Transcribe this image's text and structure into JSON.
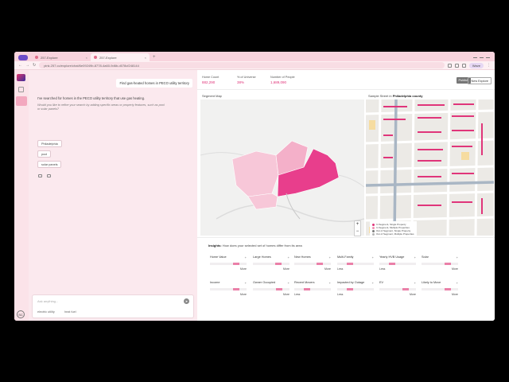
{
  "browser": {
    "tabs": [
      {
        "label": "257-Explore",
        "active": false
      },
      {
        "label": "257-Explore",
        "active": true
      }
    ],
    "url": "pink.257.co/explore/chat/6e09249b-8778-4a60-9d6b-d078cf248144",
    "profile_label": "Wave"
  },
  "chat": {
    "user_query": "Find gas-heated homes in PECO utility territory",
    "response": "I've searched for homes in the PECO utility territory that use gas heating.",
    "followup": "Would you like to refine your search by adding specific areas or property features, such as pool or solar panels?",
    "suggestions": [
      "Philadelphia",
      "pool",
      "solar panels"
    ],
    "input_placeholder": "Ask anything...",
    "selectors": [
      "electric utility",
      "heat fuel"
    ]
  },
  "stats": [
    {
      "label": "Home Count",
      "value": "882,290"
    },
    {
      "label": "% of Universe",
      "value": "38%"
    },
    {
      "label": "Number of People",
      "value": "1,689,090"
    }
  ],
  "actions": {
    "publish": "Publish",
    "new_explore": "New Explore"
  },
  "segment_map": {
    "label": "Segment Map"
  },
  "sample_map": {
    "label_prefix": "Sample Street in",
    "county": "Philadelphia county",
    "legend": [
      {
        "label": "In Segment, Single Property",
        "color": "#e0357a"
      },
      {
        "label": "In Segment, Multiple Properties",
        "color": "#f08fb3"
      },
      {
        "label": "Out of Segment, Single Property",
        "color": "#7a7a7a"
      },
      {
        "label": "Out of Segment, Multiple Properties",
        "color": "#b5b5b5"
      }
    ]
  },
  "insights": {
    "title": "Insights:",
    "subtitle": "How does your selected set of homes differ from its area",
    "cards": [
      {
        "name": "Home Value",
        "direction": "More",
        "level": 0.72
      },
      {
        "name": "Large Homes",
        "direction": "More",
        "level": 0.7
      },
      {
        "name": "New Homes",
        "direction": "More",
        "level": 0.7
      },
      {
        "name": "Multi-Family",
        "direction": "Less",
        "level": 0.35
      },
      {
        "name": "Yearly HVB Usage",
        "direction": "Less",
        "level": 0.35
      },
      {
        "name": "Solar",
        "direction": "More",
        "level": 0.72
      },
      {
        "name": "Income",
        "direction": "More",
        "level": 0.72
      },
      {
        "name": "Owner Occupied",
        "direction": "More",
        "level": 0.72
      },
      {
        "name": "Recent Movers",
        "direction": "Less",
        "level": 0.35
      },
      {
        "name": "Impacted by Outage",
        "direction": "Less",
        "level": 0.35
      },
      {
        "name": "EV",
        "direction": "More",
        "level": 0.72
      },
      {
        "name": "Likely to Move",
        "direction": "More",
        "level": 0.72
      }
    ]
  }
}
